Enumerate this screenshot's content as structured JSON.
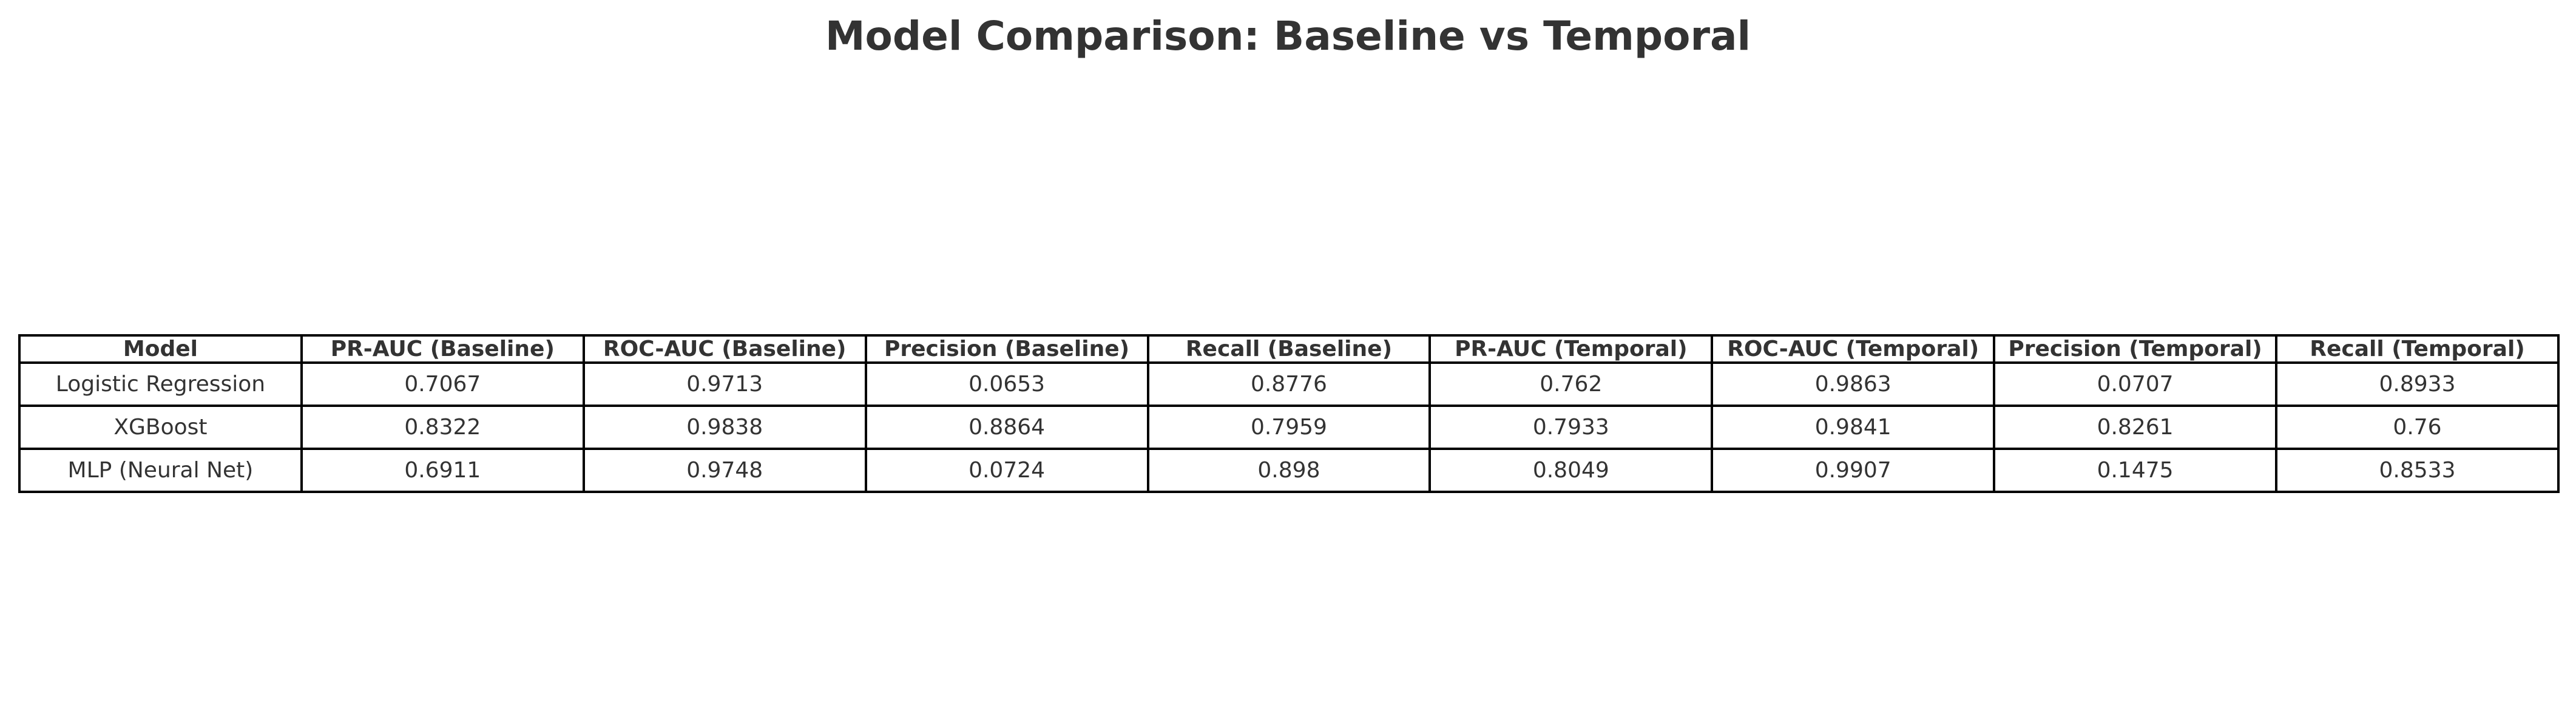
{
  "title": "Model Comparison: Baseline vs Temporal",
  "chart_data": {
    "type": "table",
    "title": "Model Comparison: Baseline vs Temporal",
    "columns": [
      "Model",
      "PR-AUC (Baseline)",
      "ROC-AUC (Baseline)",
      "Precision (Baseline)",
      "Recall (Baseline)",
      "PR-AUC (Temporal)",
      "ROC-AUC (Temporal)",
      "Precision (Temporal)",
      "Recall (Temporal)"
    ],
    "rows": [
      [
        "Logistic Regression",
        "0.7067",
        "0.9713",
        "0.0653",
        "0.8776",
        "0.762",
        "0.9863",
        "0.0707",
        "0.8933"
      ],
      [
        "XGBoost",
        "0.8322",
        "0.9838",
        "0.8864",
        "0.7959",
        "0.7933",
        "0.9841",
        "0.8261",
        "0.76"
      ],
      [
        "MLP (Neural Net)",
        "0.6911",
        "0.9748",
        "0.0724",
        "0.898",
        "0.8049",
        "0.9907",
        "0.1475",
        "0.8533"
      ]
    ]
  }
}
